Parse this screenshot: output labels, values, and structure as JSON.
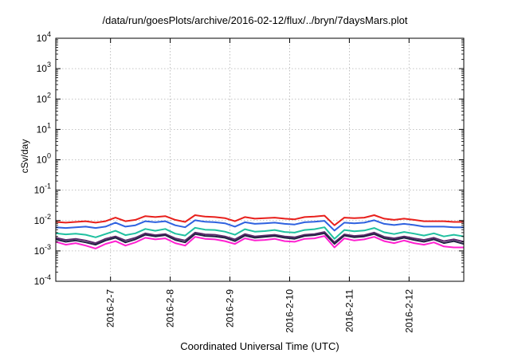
{
  "chart_data": {
    "type": "line",
    "title": "/data/run/goesPlots/archive/2016-02-12/flux/../bryn/7daysMars.plot",
    "xlabel": "Coordinated Universal Time (UTC)",
    "ylabel": "cSv/day",
    "yscale": "log",
    "ylim": [
      0.0001,
      10000
    ],
    "xlim": [
      "2016-02-06 02:00",
      "2016-02-12 22:00"
    ],
    "y_ticks": [
      {
        "base": "10",
        "exp": "-4"
      },
      {
        "base": "10",
        "exp": "-3"
      },
      {
        "base": "10",
        "exp": "-2"
      },
      {
        "base": "10",
        "exp": "-1"
      },
      {
        "base": "10",
        "exp": "0"
      },
      {
        "base": "10",
        "exp": "1"
      },
      {
        "base": "10",
        "exp": "2"
      },
      {
        "base": "10",
        "exp": "3"
      },
      {
        "base": "10",
        "exp": "4"
      }
    ],
    "x_ticks": [
      {
        "label": "2016-2-7",
        "date": "2016-02-07"
      },
      {
        "label": "2016-2-8",
        "date": "2016-02-08"
      },
      {
        "label": "2016-2-9",
        "date": "2016-02-09"
      },
      {
        "label": "2016-2-10",
        "date": "2016-02-10"
      },
      {
        "label": "2016-2-11",
        "date": "2016-02-11"
      },
      {
        "label": "2016-2-12",
        "date": "2016-02-12"
      }
    ],
    "grid": true,
    "x": [
      "2016-02-06 02:00",
      "2016-02-06 06:00",
      "2016-02-06 10:00",
      "2016-02-06 14:00",
      "2016-02-06 18:00",
      "2016-02-06 22:00",
      "2016-02-07 02:00",
      "2016-02-07 06:00",
      "2016-02-07 10:00",
      "2016-02-07 14:00",
      "2016-02-07 18:00",
      "2016-02-07 22:00",
      "2016-02-08 02:00",
      "2016-02-08 06:00",
      "2016-02-08 10:00",
      "2016-02-08 14:00",
      "2016-02-08 18:00",
      "2016-02-08 22:00",
      "2016-02-09 02:00",
      "2016-02-09 06:00",
      "2016-02-09 10:00",
      "2016-02-09 14:00",
      "2016-02-09 18:00",
      "2016-02-09 22:00",
      "2016-02-10 02:00",
      "2016-02-10 06:00",
      "2016-02-10 10:00",
      "2016-02-10 14:00",
      "2016-02-10 18:00",
      "2016-02-10 22:00",
      "2016-02-11 02:00",
      "2016-02-11 06:00",
      "2016-02-11 10:00",
      "2016-02-11 14:00",
      "2016-02-11 18:00",
      "2016-02-11 22:00",
      "2016-02-12 02:00",
      "2016-02-12 06:00",
      "2016-02-12 10:00",
      "2016-02-12 14:00",
      "2016-02-12 18:00",
      "2016-02-12 22:00"
    ],
    "series": [
      {
        "color": "#e8201c",
        "values": [
          0.009,
          0.0085,
          0.009,
          0.0095,
          0.0085,
          0.0095,
          0.0125,
          0.0095,
          0.0105,
          0.014,
          0.013,
          0.014,
          0.0105,
          0.009,
          0.015,
          0.0135,
          0.013,
          0.012,
          0.0095,
          0.013,
          0.0115,
          0.012,
          0.0125,
          0.0115,
          0.011,
          0.013,
          0.0135,
          0.0145,
          0.007,
          0.0125,
          0.012,
          0.0125,
          0.015,
          0.0115,
          0.0105,
          0.0115,
          0.0105,
          0.0095,
          0.0095,
          0.0095,
          0.009,
          0.009
        ]
      },
      {
        "color": "#2f62e0",
        "values": [
          0.006,
          0.0057,
          0.006,
          0.0063,
          0.0057,
          0.0063,
          0.0085,
          0.0063,
          0.007,
          0.0095,
          0.0088,
          0.0095,
          0.007,
          0.006,
          0.0102,
          0.0091,
          0.0088,
          0.0081,
          0.0063,
          0.0088,
          0.0078,
          0.0081,
          0.0085,
          0.0078,
          0.0074,
          0.0088,
          0.0091,
          0.0098,
          0.0047,
          0.0085,
          0.0081,
          0.0085,
          0.0102,
          0.0078,
          0.0071,
          0.0078,
          0.0071,
          0.0063,
          0.0063,
          0.0063,
          0.006,
          0.006
        ]
      },
      {
        "color": "#20c0a0",
        "values": [
          0.0038,
          0.0035,
          0.0037,
          0.0034,
          0.0028,
          0.0036,
          0.0046,
          0.0033,
          0.0038,
          0.0053,
          0.0046,
          0.0053,
          0.0037,
          0.0032,
          0.0058,
          0.005,
          0.0049,
          0.0043,
          0.0034,
          0.0052,
          0.0043,
          0.0045,
          0.0049,
          0.0042,
          0.004,
          0.0049,
          0.0052,
          0.006,
          0.0025,
          0.0049,
          0.0044,
          0.0047,
          0.0057,
          0.0041,
          0.0036,
          0.0042,
          0.0037,
          0.0032,
          0.0038,
          0.003,
          0.0034,
          0.003
        ]
      },
      {
        "color": "#5a2a6a",
        "values": [
          0.0027,
          0.0023,
          0.0025,
          0.0022,
          0.0018,
          0.0025,
          0.003,
          0.0022,
          0.0027,
          0.0038,
          0.0033,
          0.0036,
          0.0026,
          0.0022,
          0.004,
          0.0035,
          0.0034,
          0.003,
          0.0024,
          0.0036,
          0.003,
          0.0032,
          0.0034,
          0.003,
          0.0028,
          0.0034,
          0.0036,
          0.0042,
          0.0019,
          0.0035,
          0.0031,
          0.0033,
          0.004,
          0.0029,
          0.0026,
          0.003,
          0.0026,
          0.0023,
          0.0027,
          0.0021,
          0.0024,
          0.002
        ]
      },
      {
        "color": "#222244",
        "values": [
          0.0024,
          0.002,
          0.0022,
          0.0019,
          0.0016,
          0.0022,
          0.0027,
          0.0019,
          0.0024,
          0.0034,
          0.003,
          0.0033,
          0.0023,
          0.0019,
          0.0036,
          0.0031,
          0.003,
          0.0027,
          0.0021,
          0.0032,
          0.0027,
          0.0029,
          0.0031,
          0.0027,
          0.0025,
          0.0031,
          0.0033,
          0.0038,
          0.0017,
          0.0032,
          0.0028,
          0.003,
          0.0036,
          0.0026,
          0.0023,
          0.0027,
          0.0023,
          0.002,
          0.0024,
          0.0018,
          0.0021,
          0.0017
        ]
      },
      {
        "color": "#ff20d0",
        "values": [
          0.002,
          0.0016,
          0.0018,
          0.0015,
          0.0012,
          0.0017,
          0.0021,
          0.0015,
          0.0019,
          0.0027,
          0.0024,
          0.0026,
          0.0018,
          0.0015,
          0.0029,
          0.0025,
          0.0024,
          0.0021,
          0.0017,
          0.0026,
          0.0022,
          0.0023,
          0.0025,
          0.0021,
          0.002,
          0.0025,
          0.0026,
          0.0031,
          0.0013,
          0.0026,
          0.0022,
          0.0024,
          0.0029,
          0.0021,
          0.0018,
          0.0022,
          0.0018,
          0.0016,
          0.0019,
          0.0014,
          0.0013,
          0.0013
        ]
      }
    ]
  }
}
